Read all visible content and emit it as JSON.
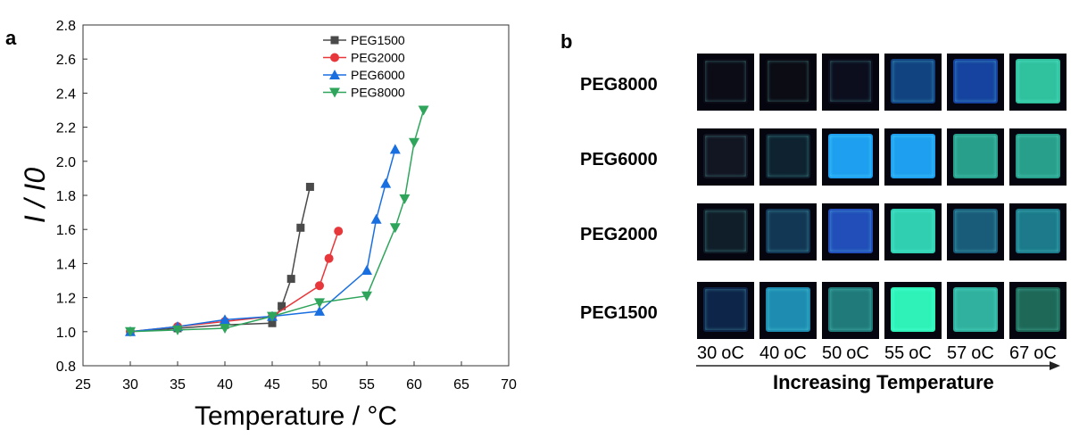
{
  "chart_data": {
    "type": "line",
    "panel_label": "a",
    "xlabel": "Temperature / °C",
    "ylabel": "I / I0",
    "xlim": [
      25,
      70
    ],
    "ylim": [
      0.8,
      2.8
    ],
    "xticks": [
      25,
      30,
      35,
      40,
      45,
      50,
      55,
      60,
      65,
      70
    ],
    "yticks": [
      "0.8",
      "1.0",
      "1.2",
      "1.4",
      "1.6",
      "1.8",
      "2.0",
      "2.2",
      "2.4",
      "2.6",
      "2.8"
    ],
    "legend_position": "top-right",
    "series": [
      {
        "name": "PEG1500",
        "color": "#4a4a4a",
        "marker": "square",
        "x": [
          30,
          35,
          40,
          45,
          46,
          47,
          48,
          49
        ],
        "y": [
          1.0,
          1.02,
          1.04,
          1.05,
          1.15,
          1.31,
          1.61,
          1.85
        ]
      },
      {
        "name": "PEG2000",
        "color": "#e8373a",
        "marker": "circle",
        "x": [
          30,
          35,
          40,
          45,
          50,
          51,
          52
        ],
        "y": [
          1.0,
          1.03,
          1.06,
          1.09,
          1.27,
          1.43,
          1.59
        ]
      },
      {
        "name": "PEG6000",
        "color": "#1a6fe0",
        "marker": "triangle-up",
        "x": [
          30,
          35,
          40,
          45,
          50,
          55,
          56,
          57,
          58
        ],
        "y": [
          1.0,
          1.03,
          1.07,
          1.09,
          1.12,
          1.36,
          1.66,
          1.87,
          2.07
        ]
      },
      {
        "name": "PEG8000",
        "color": "#2fa55c",
        "marker": "triangle-down",
        "x": [
          30,
          35,
          40,
          45,
          50,
          55,
          58,
          59,
          60,
          61
        ],
        "y": [
          1.0,
          1.01,
          1.02,
          1.09,
          1.17,
          1.21,
          1.61,
          1.78,
          2.11,
          2.3
        ]
      }
    ]
  },
  "photos": {
    "panel_label": "b",
    "rows": [
      "PEG8000",
      "PEG6000",
      "PEG2000",
      "PEG1500"
    ],
    "temperatures": [
      "30",
      "40",
      "50",
      "55",
      "57",
      "67"
    ],
    "unit": "oC",
    "caption": "Increasing Temperature",
    "tile_colors": [
      [
        "#0a0a14",
        "#0a0a12",
        "#0a0c1a",
        "#0f3a70",
        "#123a8a",
        "#2aa88a"
      ],
      [
        "#10121e",
        "#0c1e2a",
        "#1a8ad0",
        "#1a8ad0",
        "#238a78",
        "#238a78"
      ],
      [
        "#0e1a24",
        "#10304a",
        "#1d44a0",
        "#2ab49a",
        "#16506a",
        "#186a78"
      ],
      [
        "#0c2040",
        "#1a7a9a",
        "#1c6a6a",
        "#28d2a0",
        "#2a9a8a",
        "#1a5a4c"
      ]
    ]
  }
}
